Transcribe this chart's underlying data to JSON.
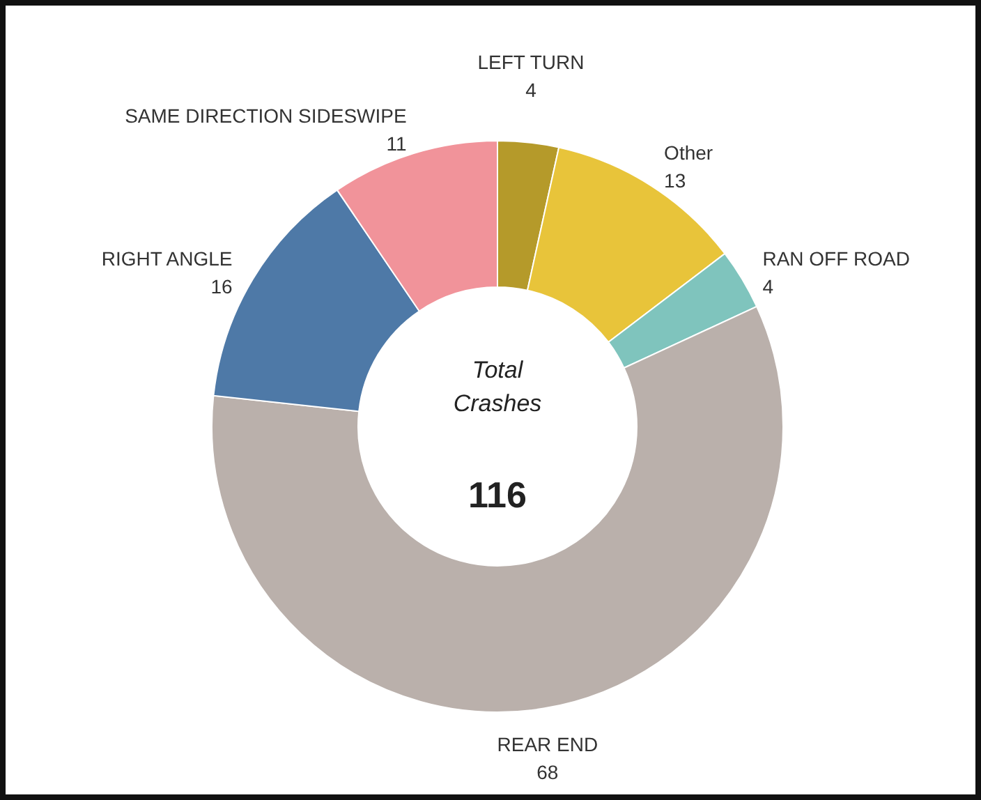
{
  "chart_data": {
    "type": "donut",
    "categories": [
      "LEFT TURN",
      "Other",
      "RAN OFF ROAD",
      "REAR END",
      "RIGHT ANGLE",
      "SAME DIRECTION SIDESWIPE"
    ],
    "values": [
      4,
      13,
      4,
      68,
      16,
      11
    ],
    "colors": [
      "#b59a2a",
      "#e8c43a",
      "#7fc4bd",
      "#bab0ab",
      "#4e79a7",
      "#f1939a"
    ],
    "data_labels": true,
    "annotations": [
      "Total Crashes",
      "116"
    ]
  }
}
